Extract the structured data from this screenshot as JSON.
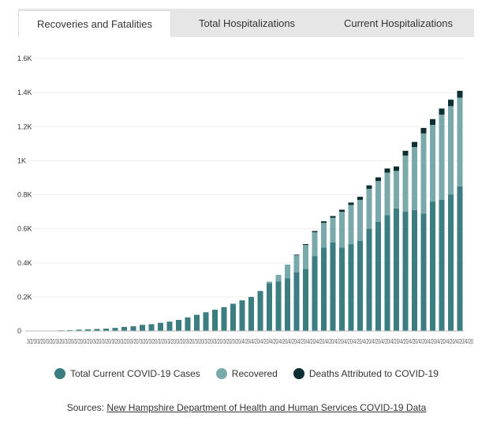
{
  "tabs": [
    {
      "label": "Recoveries and Fatalities",
      "active": true
    },
    {
      "label": "Total Hospitalizations",
      "active": false
    },
    {
      "label": "Current Hospitalizations",
      "active": false
    }
  ],
  "colors": {
    "current": "#3b7d80",
    "recovered": "#79a9ab",
    "deaths": "#0d2f33"
  },
  "chart_data": {
    "type": "bar",
    "stacked": true,
    "ylim": [
      0,
      1600
    ],
    "yticks": [
      0,
      200,
      400,
      600,
      800,
      1000,
      1200,
      1400,
      1600
    ],
    "ytick_labels": [
      "0",
      "0.2K",
      "0.4K",
      "0.6K",
      "0.8K",
      "1K",
      "1.2K",
      "1.4K",
      "1.6K"
    ],
    "x_tick_text": "3/2/3/3/20/3/20/3/20/3/20/3/20/3/20/3/20/3/20/3/20/3/20/3/20/3/20/3/20/3/20/3/20/3/20/3/20/3/20/3/20/3/20/3/20/3/20/4/20/4/20/4/20/4/20/4/20/4/20/4/20/4/20/4/20/4/20/4/20/4/20/4/20/4/20/4/20/4/20/4/20/4/20/4/20/4/20/4/20/4/20/4/20/4/20/4/20",
    "series": [
      {
        "name": "Total Current COVID-19 Cases",
        "values": [
          2,
          2,
          4,
          5,
          8,
          10,
          12,
          14,
          18,
          24,
          28,
          36,
          40,
          48,
          55,
          65,
          80,
          95,
          110,
          125,
          140,
          160,
          180,
          200,
          235,
          280,
          290,
          310,
          345,
          365,
          440,
          490,
          520,
          490,
          510,
          530,
          600,
          640,
          680,
          720,
          700,
          710,
          690,
          760,
          770,
          800,
          850
        ]
      },
      {
        "name": "Recovered",
        "values": [
          0,
          0,
          0,
          0,
          0,
          0,
          0,
          0,
          0,
          0,
          0,
          0,
          0,
          0,
          0,
          0,
          0,
          0,
          0,
          0,
          0,
          0,
          0,
          0,
          0,
          10,
          40,
          80,
          100,
          140,
          140,
          145,
          145,
          210,
          230,
          240,
          235,
          240,
          250,
          220,
          330,
          370,
          470,
          450,
          500,
          520,
          520
        ]
      },
      {
        "name": "Deaths Attributed to COVID-19",
        "values": [
          0,
          0,
          0,
          0,
          0,
          0,
          0,
          0,
          0,
          0,
          0,
          0,
          0,
          0,
          0,
          0,
          0,
          0,
          0,
          0,
          0,
          0,
          0,
          0,
          0,
          0,
          0,
          0,
          3,
          5,
          7,
          9,
          10,
          12,
          14,
          18,
          20,
          22,
          24,
          26,
          28,
          30,
          32,
          34,
          36,
          38,
          40
        ]
      }
    ]
  },
  "legend": [
    {
      "label": "Total Current COVID-19 Cases",
      "color": "#3b7d80"
    },
    {
      "label": "Recovered",
      "color": "#79a9ab"
    },
    {
      "label": "Deaths Attributed to COVID-19",
      "color": "#0d2f33"
    }
  ],
  "sources": {
    "prefix": "Sources:",
    "link_text": "New Hampshire Department of Health and Human Services COVID-19 Data"
  }
}
